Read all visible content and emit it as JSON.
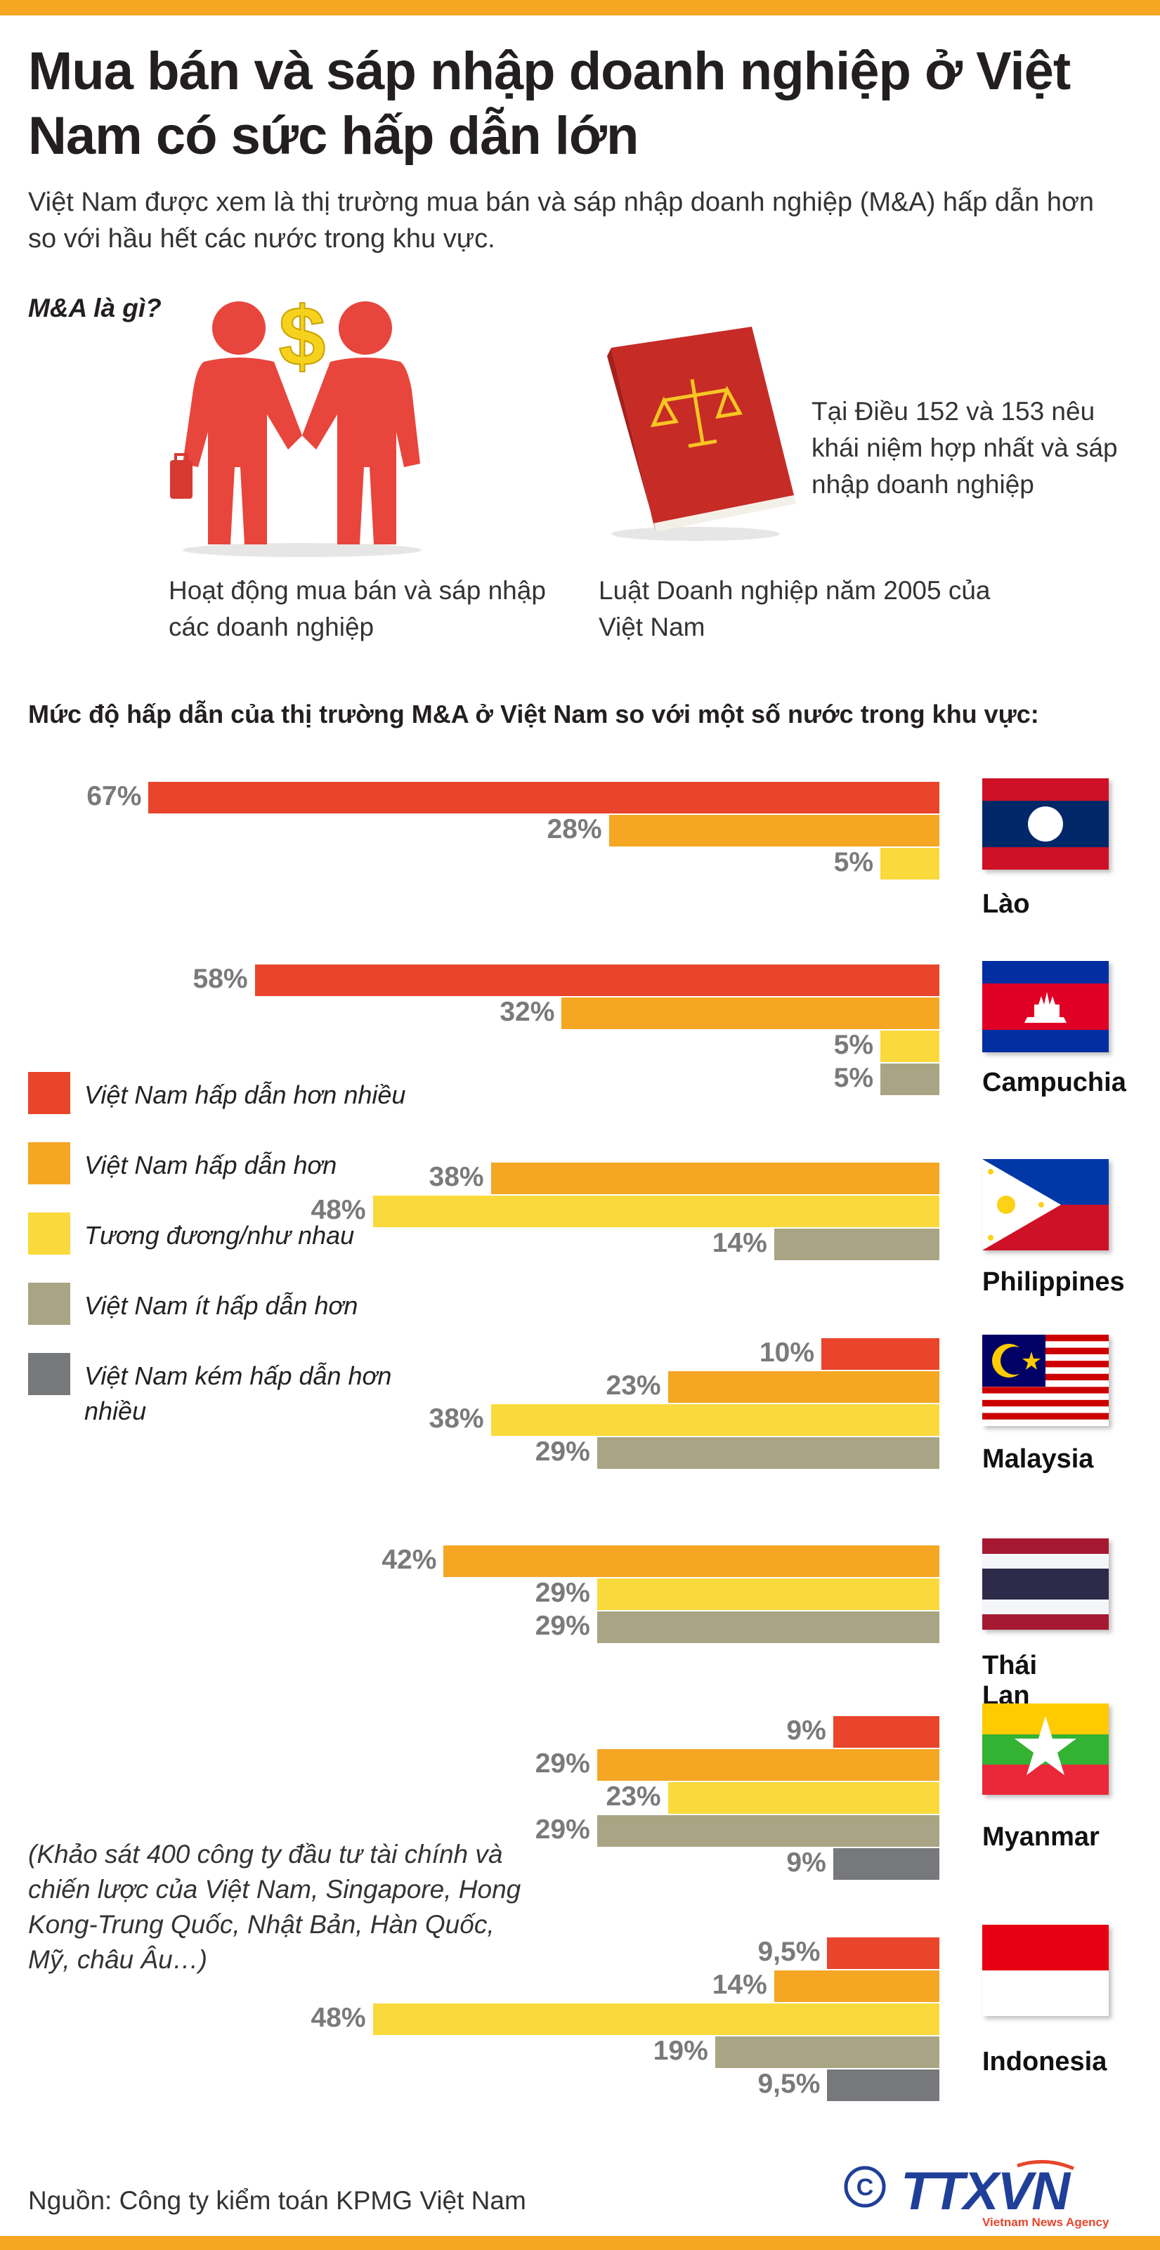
{
  "title": "Mua bán và sáp nhập doanh nghiệp ở Việt Nam có sức hấp dẫn lớn",
  "intro": "Việt Nam được xem là thị trường mua bán và sáp nhập doanh nghiệp (M&A) hấp dẫn hơn so với hầu hết các nước trong khu vực.",
  "ma_question": "M&A là gì?",
  "ma_definition": "Hoạt động mua bán và sáp nhập các doanh nghiệp",
  "law_caption": "Luật Doanh nghiệp năm 2005 của Việt Nam",
  "law_note": "Tại Điều 152 và 153 nêu khái niệm hợp nhất và sáp nhập doanh nghiệp",
  "chart_subtitle": "Mức độ hấp dẫn của thị trường M&A ở Việt Nam so với một số nước trong khu vực:",
  "survey_note": "(Khảo sát 400 công ty đầu tư tài chính và chiến lược của Việt Nam, Singapore, Hong Kong-Trung Quốc, Nhật Bản, Hàn Quốc, Mỹ, châu Âu…)",
  "source": "Nguồn: Công ty kiểm toán KPMG Việt Nam",
  "logo": {
    "main": "TTXVN",
    "sub": "Vietnam News Agency",
    "copyright": "©"
  },
  "colors": {
    "much_more": "#e8452c",
    "more": "#f5a623",
    "equal": "#fad93c",
    "less": "#a9a584",
    "much_less": "#77787b",
    "band": "#f5a623",
    "logo_blue": "#1f3f99"
  },
  "legend": [
    {
      "key": "much_more",
      "label": "Việt Nam hấp dẫn hơn nhiều"
    },
    {
      "key": "more",
      "label": "Việt Nam hấp dẫn hơn"
    },
    {
      "key": "equal",
      "label": "Tương đương/như nhau"
    },
    {
      "key": "less",
      "label": "Việt Nam ít hấp dẫn hơn"
    },
    {
      "key": "much_less",
      "label": "Việt Nam kém hấp dẫn hơn nhiều"
    }
  ],
  "chart_data": {
    "type": "bar",
    "orientation": "horizontal",
    "unit": "%",
    "xlim": [
      0,
      80
    ],
    "groups": [
      {
        "country": "Lào",
        "flag": "laos",
        "bars": [
          {
            "key": "much_more",
            "value": 67,
            "label": "67%"
          },
          {
            "key": "more",
            "value": 28,
            "label": "28%"
          },
          {
            "key": "equal",
            "value": 5,
            "label": "5%"
          }
        ]
      },
      {
        "country": "Campuchia",
        "flag": "cambodia",
        "bars": [
          {
            "key": "much_more",
            "value": 58,
            "label": "58%"
          },
          {
            "key": "more",
            "value": 32,
            "label": "32%"
          },
          {
            "key": "equal",
            "value": 5,
            "label": "5%"
          },
          {
            "key": "less",
            "value": 5,
            "label": "5%"
          }
        ]
      },
      {
        "country": "Philippines",
        "flag": "philippines",
        "bars": [
          {
            "key": "more",
            "value": 38,
            "label": "38%"
          },
          {
            "key": "equal",
            "value": 48,
            "label": "48%"
          },
          {
            "key": "less",
            "value": 14,
            "label": "14%"
          }
        ]
      },
      {
        "country": "Malaysia",
        "flag": "malaysia",
        "bars": [
          {
            "key": "much_more",
            "value": 10,
            "label": "10%"
          },
          {
            "key": "more",
            "value": 23,
            "label": "23%"
          },
          {
            "key": "equal",
            "value": 38,
            "label": "38%"
          },
          {
            "key": "less",
            "value": 29,
            "label": "29%"
          }
        ]
      },
      {
        "country": "Thái Lan",
        "flag": "thailand",
        "bars": [
          {
            "key": "more",
            "value": 42,
            "label": "42%"
          },
          {
            "key": "equal",
            "value": 29,
            "label": "29%"
          },
          {
            "key": "less",
            "value": 29,
            "label": "29%"
          }
        ]
      },
      {
        "country": "Myanmar",
        "flag": "myanmar",
        "bars": [
          {
            "key": "much_more",
            "value": 9,
            "label": "9%"
          },
          {
            "key": "more",
            "value": 29,
            "label": "29%"
          },
          {
            "key": "equal",
            "value": 23,
            "label": "23%"
          },
          {
            "key": "less",
            "value": 29,
            "label": "29%"
          },
          {
            "key": "much_less",
            "value": 9,
            "label": "9%"
          }
        ]
      },
      {
        "country": "Indonesia",
        "flag": "indonesia",
        "bars": [
          {
            "key": "much_more",
            "value": 9.5,
            "label": "9,5%"
          },
          {
            "key": "more",
            "value": 14,
            "label": "14%"
          },
          {
            "key": "equal",
            "value": 48,
            "label": "48%"
          },
          {
            "key": "less",
            "value": 19,
            "label": "19%"
          },
          {
            "key": "much_less",
            "value": 9.5,
            "label": "9,5%"
          }
        ]
      }
    ]
  }
}
